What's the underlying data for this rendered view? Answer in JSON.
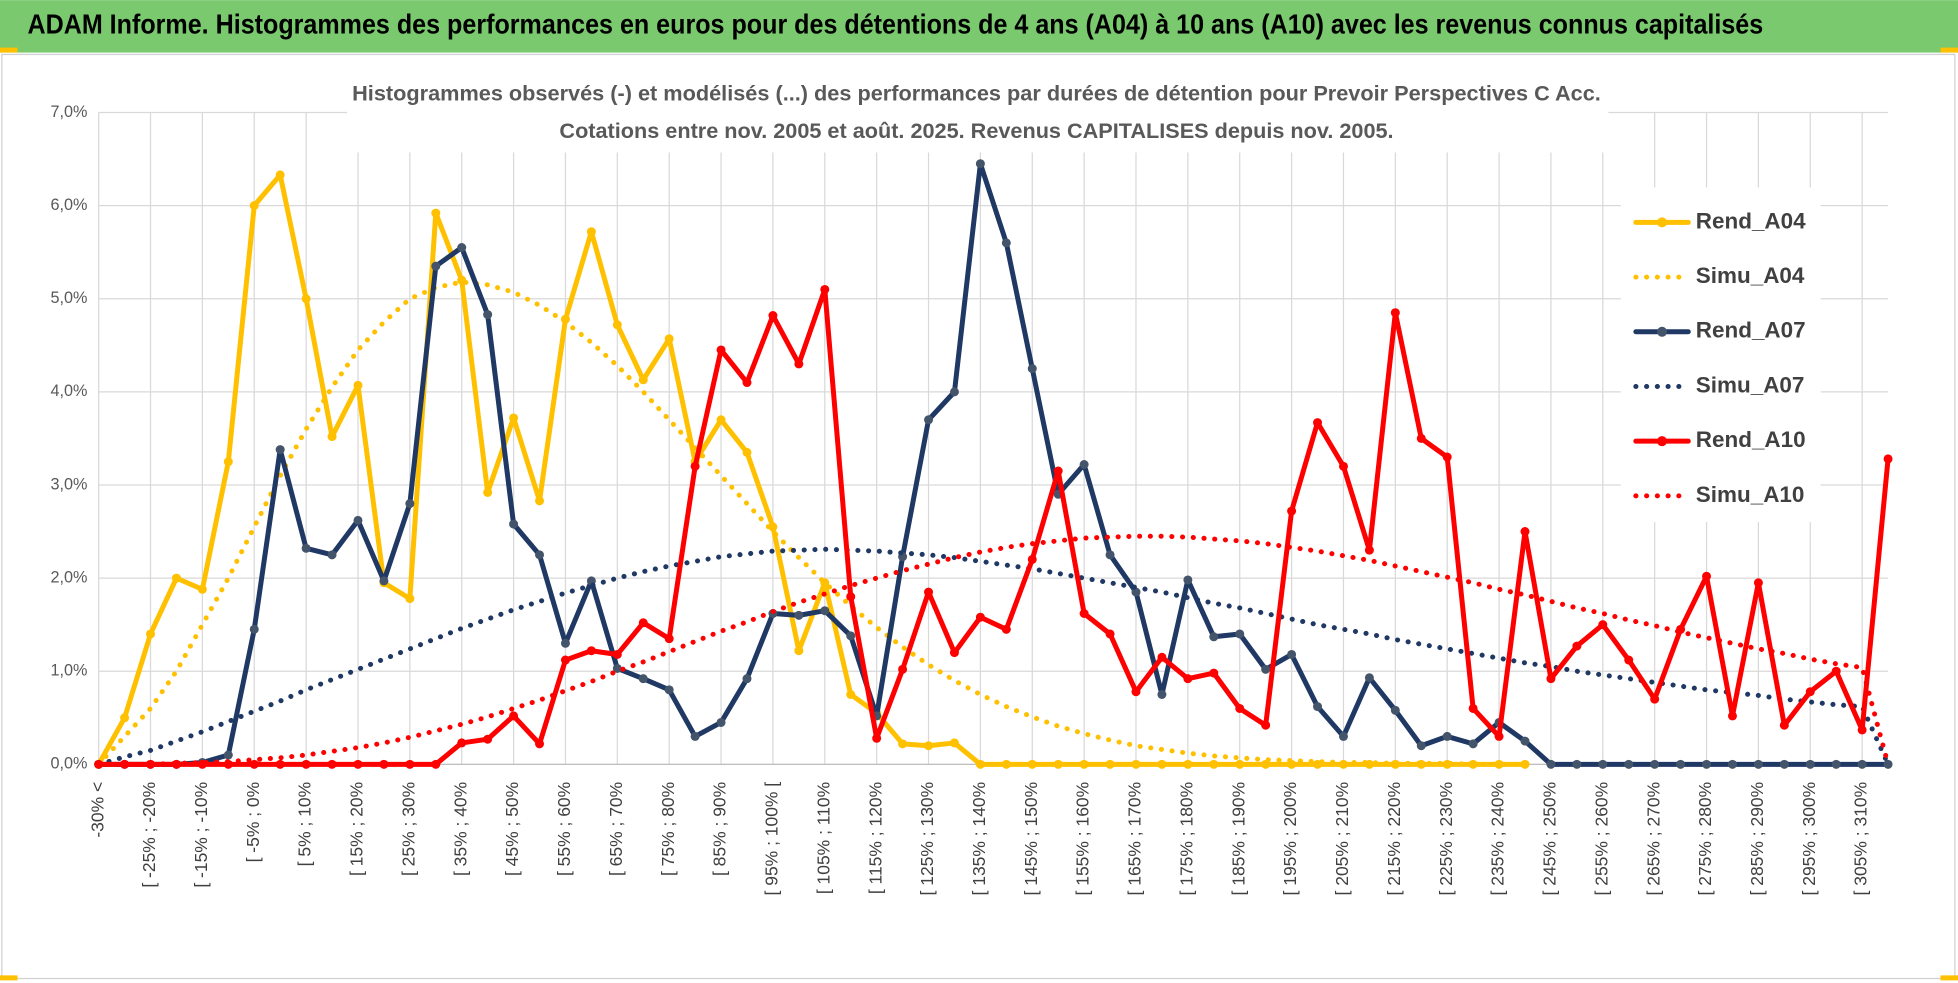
{
  "header": "ADAM Informe. Histogrammes des performances en euros pour des détentions de 4 ans (A04) à 10 ans (A10) avec les revenus connus capitalisés",
  "chart_data": {
    "type": "line",
    "title": "Histogrammes observés (-) et modélisés (...) des performances par durées de détention pour Prevoir Perspectives C Acc.",
    "subtitle": "Cotations entre nov. 2005 et août. 2025. Revenus CAPITALISES depuis nov. 2005.",
    "categories": [
      "-30% <",
      null,
      "[ -25% ; -20%",
      null,
      "[ -15% ; -10%",
      null,
      "[ -5% ; 0%",
      null,
      "[ 5% ; 10%",
      null,
      "[ 15% ; 20%",
      null,
      "[ 25% ; 30%",
      null,
      "[ 35% ; 40%",
      null,
      "[ 45% ; 50%",
      null,
      "[ 55% ; 60%",
      null,
      "[ 65% ; 70%",
      null,
      "[ 75% ; 80%",
      null,
      "[ 85% ; 90%",
      null,
      "[ 95% ; 100% [",
      null,
      "[ 105% ; 110%",
      null,
      "[ 115% ; 120%",
      null,
      "[ 125% ; 130%",
      null,
      "[ 135% ; 140%",
      null,
      "[ 145% ; 150%",
      null,
      "[ 155% ; 160%",
      null,
      "[ 165% ; 170%",
      null,
      "[ 175% ; 180%",
      null,
      "[ 185% ; 190%",
      null,
      "[ 195% ; 200%",
      null,
      "[ 205% ; 210%",
      null,
      "[ 215% ; 220%",
      null,
      "[ 225% ; 230%",
      null,
      "[ 235% ; 240%",
      null,
      "[ 245% ; 250%",
      null,
      "[ 255% ; 260%",
      null,
      "[ 265% ; 270%",
      null,
      "[ 275% ; 280%",
      null,
      "[ 285% ; 290%",
      null,
      "[ 295% ; 300%",
      null,
      "[ 305% ; 310%",
      null
    ],
    "series": [
      {
        "name": "Rend_A04",
        "color": "#ffc000",
        "style": "solid",
        "values": [
          0,
          0.5,
          1.4,
          2.0,
          1.88,
          3.25,
          6.0,
          6.33,
          5.0,
          3.52,
          4.07,
          1.95,
          1.78,
          5.92,
          5.2,
          2.92,
          3.72,
          2.83,
          4.78,
          5.72,
          4.72,
          4.13,
          4.57,
          3.25,
          3.7,
          3.35,
          2.55,
          1.22,
          1.95,
          0.75,
          0.55,
          0.22,
          0.2,
          0.23,
          0,
          0,
          0,
          0,
          0,
          0,
          0,
          0,
          0,
          0,
          0,
          0,
          0,
          0,
          0,
          0,
          0,
          0,
          0,
          0,
          0,
          0,
          null,
          null,
          null,
          null,
          null,
          null,
          null,
          null,
          null,
          null,
          null,
          null,
          null,
          null
        ]
      },
      {
        "name": "Simu_A04",
        "color": "#ffc000",
        "style": "dotted",
        "values": [
          0,
          0.3,
          0.6,
          1.0,
          1.5,
          2.0,
          2.55,
          3.1,
          3.6,
          4.05,
          4.45,
          4.75,
          5.0,
          5.12,
          5.18,
          5.15,
          5.07,
          4.93,
          4.75,
          4.53,
          4.28,
          4.0,
          3.7,
          3.4,
          3.1,
          2.8,
          2.5,
          2.22,
          1.95,
          1.7,
          1.47,
          1.26,
          1.07,
          0.9,
          0.75,
          0.62,
          0.51,
          0.41,
          0.33,
          0.26,
          0.2,
          0.16,
          0.12,
          0.09,
          0.07,
          0.05,
          0.04,
          0.03,
          0.02,
          0.02,
          0.01,
          0.01,
          0.01,
          0,
          0,
          0,
          null,
          null,
          null,
          null,
          null,
          null,
          null,
          null,
          null,
          null,
          null,
          null,
          null,
          null
        ]
      },
      {
        "name": "Rend_A07",
        "color": "#1f3864",
        "style": "solid",
        "values": [
          0,
          0,
          0,
          0,
          0.02,
          0.1,
          1.45,
          3.38,
          2.32,
          2.25,
          2.62,
          1.97,
          2.8,
          5.35,
          5.55,
          4.83,
          2.58,
          2.25,
          1.3,
          1.97,
          1.03,
          0.92,
          0.8,
          0.3,
          0.45,
          0.92,
          1.62,
          1.6,
          1.65,
          1.38,
          0.52,
          2.23,
          3.7,
          4.0,
          6.45,
          5.6,
          4.25,
          2.9,
          3.22,
          2.25,
          1.85,
          0.75,
          1.98,
          1.37,
          1.4,
          1.02,
          1.18,
          0.62,
          0.3,
          0.93,
          0.58,
          0.2,
          0.3,
          0.22,
          0.45,
          0.25,
          0,
          0,
          0,
          0,
          0,
          0,
          0,
          0,
          0,
          0,
          0,
          0,
          0,
          0
        ]
      },
      {
        "name": "Simu_A07",
        "color": "#1f3864",
        "style": "dotted",
        "values": [
          0,
          0.08,
          0.15,
          0.25,
          0.35,
          0.46,
          0.57,
          0.68,
          0.8,
          0.91,
          1.02,
          1.13,
          1.24,
          1.35,
          1.46,
          1.56,
          1.66,
          1.75,
          1.84,
          1.92,
          2.0,
          2.07,
          2.13,
          2.18,
          2.23,
          2.26,
          2.29,
          2.3,
          2.31,
          2.3,
          2.29,
          2.27,
          2.25,
          2.22,
          2.18,
          2.14,
          2.1,
          2.05,
          2.0,
          1.95,
          1.9,
          1.85,
          1.79,
          1.73,
          1.68,
          1.62,
          1.56,
          1.5,
          1.45,
          1.4,
          1.34,
          1.29,
          1.24,
          1.19,
          1.14,
          1.09,
          1.05,
          1.0,
          0.96,
          0.92,
          0.88,
          0.84,
          0.8,
          0.77,
          0.74,
          0.7,
          0.67,
          0.64,
          0.62,
          0
        ]
      },
      {
        "name": "Rend_A10",
        "color": "#ff0000",
        "style": "solid",
        "values": [
          0,
          0,
          0,
          0,
          0,
          0,
          0,
          0,
          0,
          0,
          0,
          0,
          0,
          0,
          0.23,
          0.27,
          0.52,
          0.22,
          1.12,
          1.22,
          1.18,
          1.52,
          1.35,
          3.2,
          4.45,
          4.1,
          4.82,
          4.3,
          5.1,
          1.8,
          0.28,
          1.02,
          1.85,
          1.2,
          1.58,
          1.45,
          2.2,
          3.15,
          1.62,
          1.4,
          0.78,
          1.15,
          0.92,
          0.98,
          0.6,
          0.42,
          2.72,
          3.67,
          3.2,
          2.3,
          4.85,
          3.5,
          3.3,
          0.6,
          0.3,
          2.5,
          0.92,
          1.27,
          1.5,
          1.12,
          0.7,
          1.45,
          2.02,
          0.52,
          1.95,
          0.42,
          0.78,
          1.0,
          0.37,
          3.28
        ]
      },
      {
        "name": "Simu_A10",
        "color": "#ff0000",
        "style": "dotted",
        "values": [
          0,
          0,
          0,
          0.01,
          0.02,
          0.03,
          0.05,
          0.07,
          0.1,
          0.14,
          0.18,
          0.23,
          0.29,
          0.36,
          0.43,
          0.51,
          0.6,
          0.69,
          0.79,
          0.89,
          1.0,
          1.1,
          1.21,
          1.32,
          1.43,
          1.53,
          1.64,
          1.74,
          1.83,
          1.92,
          2.0,
          2.08,
          2.15,
          2.22,
          2.28,
          2.33,
          2.37,
          2.4,
          2.43,
          2.44,
          2.45,
          2.45,
          2.44,
          2.42,
          2.4,
          2.37,
          2.33,
          2.29,
          2.24,
          2.19,
          2.13,
          2.07,
          2.01,
          1.95,
          1.88,
          1.82,
          1.75,
          1.68,
          1.62,
          1.55,
          1.49,
          1.42,
          1.36,
          1.3,
          1.24,
          1.19,
          1.13,
          1.08,
          1.04,
          0
        ]
      }
    ],
    "ylim": [
      0,
      7
    ],
    "yticks": [
      {
        "value": 0,
        "label": "0,0%"
      },
      {
        "value": 1,
        "label": "1,0%"
      },
      {
        "value": 2,
        "label": "2,0%"
      },
      {
        "value": 3,
        "label": "3,0%"
      },
      {
        "value": 4,
        "label": "4,0%"
      },
      {
        "value": 5,
        "label": "5,0%"
      },
      {
        "value": 6,
        "label": "6,0%"
      },
      {
        "value": 7,
        "label": "7,0%"
      }
    ],
    "grid": true,
    "legend": "right"
  }
}
